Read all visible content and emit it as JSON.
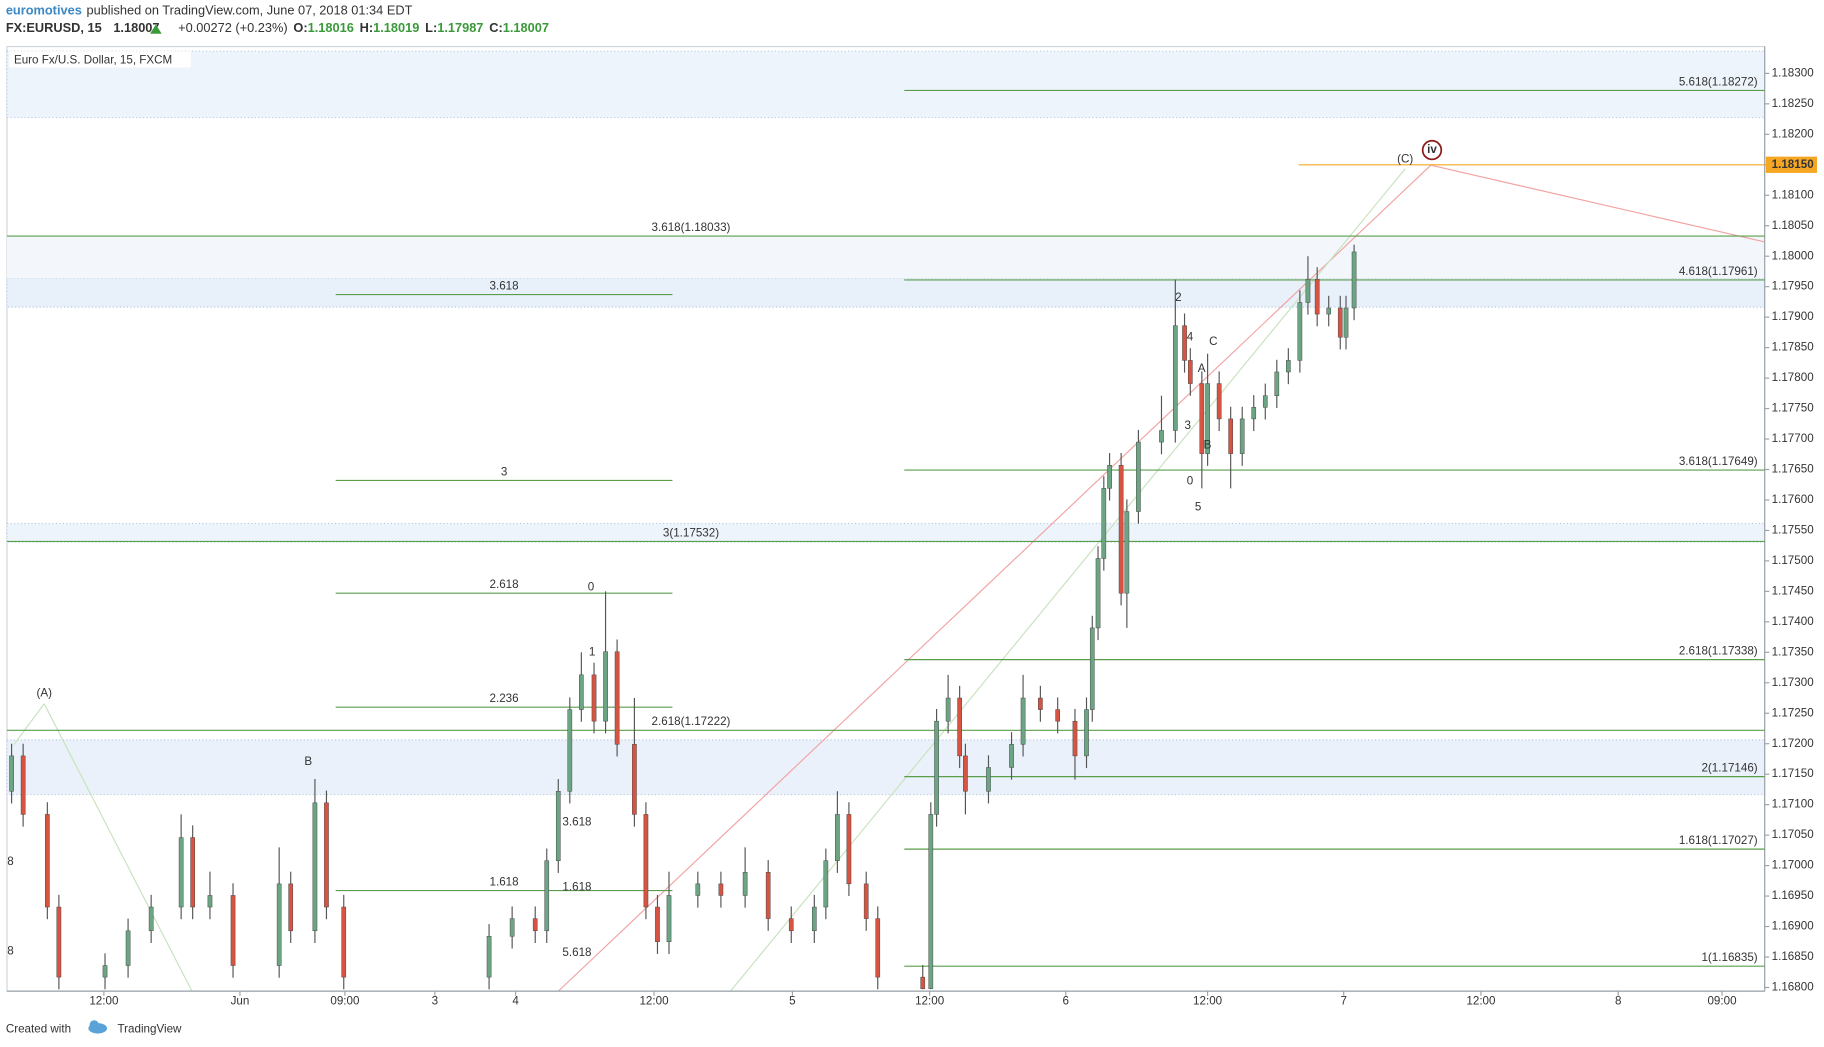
{
  "header": {
    "author": "euromotives",
    "published": "published on TradingView.com, June 07, 2018 01:34 EDT",
    "symbol": "FX:EURUSD, 15",
    "last": "1.18007",
    "change": "+0.00272 (+0.23%)",
    "ohlc": [
      {
        "label": "O:",
        "value": "1.18016"
      },
      {
        "label": "H:",
        "value": "1.18019"
      },
      {
        "label": "L:",
        "value": "1.17987"
      },
      {
        "label": "C:",
        "value": "1.18007"
      }
    ]
  },
  "footer": {
    "created": "Created with",
    "brand": "TradingView"
  },
  "chart_data": {
    "type": "candlestick",
    "title": "Euro Fx/U.S. Dollar, 15, FXCM",
    "x": [
      -43.7,
      -42.7,
      -40.6,
      -39.6,
      -35.6,
      -33.6,
      -31.6,
      -29.0,
      -28.0,
      -26.5,
      -24.5,
      -20.5,
      -19.5,
      -17.4,
      -16.4,
      -14.9,
      -2.3,
      -0.3,
      1.7,
      2.7,
      3.7,
      4.7,
      5.7,
      6.8,
      7.8,
      8.8,
      10.3,
      11.3,
      12.3,
      13.3,
      15.8,
      17.8,
      19.9,
      21.9,
      23.9,
      25.9,
      26.9,
      27.9,
      28.9,
      30.4,
      31.4,
      35.3,
      36.0,
      36.5,
      37.5,
      38.5,
      39.0,
      41.0,
      43.0,
      44.0,
      45.5,
      47.0,
      48.5,
      49.5,
      50.0,
      50.5,
      51.0,
      51.5,
      52.5,
      53.0,
      54.0,
      56.0,
      57.2,
      58.0,
      58.5,
      59.5,
      60.0,
      61.0,
      62.0,
      63.0,
      64.0,
      65.0,
      66.0,
      67.0,
      68.0,
      68.7,
      69.5,
      70.5,
      71.5,
      72.0,
      72.7
    ],
    "open": [
      1.17122,
      1.1718,
      1.17084,
      1.16932,
      1.16817,
      1.16836,
      1.16893,
      1.16932,
      1.17046,
      1.16932,
      1.16951,
      1.16836,
      1.1697,
      1.16893,
      1.17103,
      1.16932,
      1.16817,
      1.16884,
      1.16913,
      1.16893,
      1.17008,
      1.17122,
      1.17256,
      1.17313,
      1.17237,
      1.17351,
      1.17199,
      1.17084,
      1.16932,
      1.16875,
      1.16951,
      1.1697,
      1.16951,
      1.16989,
      1.16913,
      1.16893,
      1.16932,
      1.17008,
      1.17084,
      1.1697,
      1.16913,
      1.16817,
      1.16798,
      1.17084,
      1.17237,
      1.17275,
      1.1718,
      1.17122,
      1.17161,
      1.17199,
      1.17275,
      1.17256,
      1.17237,
      1.1718,
      1.17256,
      1.1739,
      1.17504,
      1.17619,
      1.17657,
      1.17447,
      1.17581,
      1.17695,
      1.17714,
      1.17886,
      1.17829,
      1.17791,
      1.17676,
      1.17791,
      1.17733,
      1.17676,
      1.17733,
      1.17752,
      1.17771,
      1.1781,
      1.17829,
      1.17924,
      1.17962,
      1.17905,
      1.17915,
      1.17867,
      1.17915
    ],
    "high": [
      1.172,
      1.172,
      1.17104,
      1.16952,
      1.16856,
      1.16913,
      1.16952,
      1.17084,
      1.17066,
      1.1699,
      1.16971,
      1.1703,
      1.1699,
      1.17142,
      1.17123,
      1.16952,
      1.16904,
      1.16933,
      1.16933,
      1.17028,
      1.17142,
      1.17276,
      1.1735,
      1.17333,
      1.1745,
      1.17371,
      1.17275,
      1.17104,
      1.16952,
      1.1699,
      1.1699,
      1.1699,
      1.1703,
      1.17009,
      1.16933,
      1.16952,
      1.17028,
      1.17122,
      1.17104,
      1.1699,
      1.16933,
      1.16837,
      1.17104,
      1.17257,
      1.17313,
      1.17295,
      1.172,
      1.17181,
      1.17219,
      1.17313,
      1.17295,
      1.17276,
      1.17257,
      1.17276,
      1.1741,
      1.17524,
      1.17639,
      1.17677,
      1.17677,
      1.17601,
      1.17715,
      1.17771,
      1.17962,
      1.17906,
      1.17849,
      1.17811,
      1.1784,
      1.17811,
      1.17753,
      1.17753,
      1.17772,
      1.17791,
      1.1783,
      1.17849,
      1.17944,
      1.18,
      1.17982,
      1.17935,
      1.17935,
      1.17935,
      1.18019
    ],
    "low": [
      1.17102,
      1.17064,
      1.16912,
      1.16797,
      1.16797,
      1.16816,
      1.16873,
      1.16912,
      1.16912,
      1.16912,
      1.16816,
      1.16816,
      1.16873,
      1.16873,
      1.16912,
      1.16797,
      1.16797,
      1.16864,
      1.16873,
      1.16873,
      1.16988,
      1.17102,
      1.17236,
      1.17217,
      1.17217,
      1.17179,
      1.17064,
      1.16912,
      1.16855,
      1.16855,
      1.16931,
      1.16931,
      1.16931,
      1.16893,
      1.16873,
      1.16873,
      1.16912,
      1.16988,
      1.1695,
      1.16893,
      1.16797,
      1.16797,
      1.16797,
      1.17064,
      1.17217,
      1.1716,
      1.17084,
      1.17102,
      1.17141,
      1.17179,
      1.17236,
      1.17217,
      1.17141,
      1.1716,
      1.17236,
      1.1737,
      1.17484,
      1.17599,
      1.17427,
      1.1739,
      1.17561,
      1.17675,
      1.17694,
      1.17809,
      1.17771,
      1.17619,
      1.17656,
      1.17713,
      1.17619,
      1.17656,
      1.17713,
      1.17732,
      1.17751,
      1.1779,
      1.17809,
      1.17904,
      1.17885,
      1.17885,
      1.17847,
      1.17847,
      1.17895
    ],
    "close": [
      1.1718,
      1.17084,
      1.16932,
      1.16817,
      1.16836,
      1.16893,
      1.16932,
      1.17046,
      1.16932,
      1.16951,
      1.16836,
      1.1697,
      1.16893,
      1.17103,
      1.16932,
      1.16817,
      1.16884,
      1.16913,
      1.16893,
      1.17008,
      1.17122,
      1.17256,
      1.17313,
      1.17237,
      1.17351,
      1.17199,
      1.17084,
      1.16932,
      1.16875,
      1.16951,
      1.1697,
      1.16951,
      1.16989,
      1.16913,
      1.16893,
      1.16932,
      1.17008,
      1.17084,
      1.1697,
      1.16913,
      1.16817,
      1.16798,
      1.17084,
      1.17237,
      1.17275,
      1.1718,
      1.17122,
      1.17161,
      1.17199,
      1.17275,
      1.17256,
      1.17237,
      1.1718,
      1.17256,
      1.1739,
      1.17504,
      1.17619,
      1.17657,
      1.17447,
      1.17581,
      1.17695,
      1.17714,
      1.17886,
      1.17829,
      1.17791,
      1.17676,
      1.17791,
      1.17733,
      1.17676,
      1.17733,
      1.17752,
      1.17771,
      1.1781,
      1.17829,
      1.17924,
      1.17962,
      1.17905,
      1.17915,
      1.17867,
      1.17915,
      1.18007
    ],
    "up_color": "#6ba583",
    "down_color": "#d75442",
    "xlim": [
      -44.1,
      108.3
    ],
    "xticks": [
      {
        "value": -35.7,
        "label": "12:00"
      },
      {
        "value": -23.9,
        "label": "Jun"
      },
      {
        "value": -14.8,
        "label": "09:00"
      },
      {
        "value": -7.0,
        "label": "3"
      },
      {
        "value": 0,
        "label": "4"
      },
      {
        "value": 12.0,
        "label": "12:00"
      },
      {
        "value": 24.0,
        "label": "5"
      },
      {
        "value": 35.9,
        "label": "12:00"
      },
      {
        "value": 47.7,
        "label": "6"
      },
      {
        "value": 60.0,
        "label": "12:00"
      },
      {
        "value": 71.8,
        "label": "7"
      },
      {
        "value": 83.7,
        "label": "12:00"
      },
      {
        "value": 95.6,
        "label": "8"
      },
      {
        "value": 104.6,
        "label": "09:00"
      }
    ],
    "ylim": [
      1.16794,
      1.18344
    ],
    "yticks": [
      {
        "value": 1.168,
        "label": "1.16800"
      },
      {
        "value": 1.1685,
        "label": "1.16850"
      },
      {
        "value": 1.169,
        "label": "1.16900"
      },
      {
        "value": 1.1695,
        "label": "1.16950"
      },
      {
        "value": 1.17,
        "label": "1.17000"
      },
      {
        "value": 1.1705,
        "label": "1.17050"
      },
      {
        "value": 1.171,
        "label": "1.17100"
      },
      {
        "value": 1.1715,
        "label": "1.17150"
      },
      {
        "value": 1.172,
        "label": "1.17200"
      },
      {
        "value": 1.1725,
        "label": "1.17250"
      },
      {
        "value": 1.173,
        "label": "1.17300"
      },
      {
        "value": 1.1735,
        "label": "1.17350"
      },
      {
        "value": 1.174,
        "label": "1.17400"
      },
      {
        "value": 1.1745,
        "label": "1.17450"
      },
      {
        "value": 1.175,
        "label": "1.17500"
      },
      {
        "value": 1.1755,
        "label": "1.17550"
      },
      {
        "value": 1.176,
        "label": "1.17600"
      },
      {
        "value": 1.1765,
        "label": "1.17650"
      },
      {
        "value": 1.177,
        "label": "1.17700"
      },
      {
        "value": 1.1775,
        "label": "1.17750"
      },
      {
        "value": 1.178,
        "label": "1.17800"
      },
      {
        "value": 1.1785,
        "label": "1.17850"
      },
      {
        "value": 1.179,
        "label": "1.17900"
      },
      {
        "value": 1.1795,
        "label": "1.17950"
      },
      {
        "value": 1.18,
        "label": "1.18000"
      },
      {
        "value": 1.1805,
        "label": "1.18050"
      },
      {
        "value": 1.181,
        "label": "1.18100"
      },
      {
        "value": 1.1815,
        "label": "1.18150"
      },
      {
        "value": 1.182,
        "label": "1.18200"
      },
      {
        "value": 1.1825,
        "label": "1.18250"
      },
      {
        "value": 1.183,
        "label": "1.18300"
      }
    ],
    "levels": [
      {
        "label": "5.618(1.18272)",
        "price": 1.18272,
        "x": [
          33.7,
          108.3
        ]
      },
      {
        "label": "3.618(1.18033)",
        "price": 1.18033,
        "x": [
          -44.1,
          108.3
        ]
      },
      {
        "label": "4.618(1.17961)",
        "price": 1.17961,
        "x": [
          33.7,
          108.3
        ]
      },
      {
        "label": "3.618",
        "price": 1.17937,
        "x": [
          -15.6,
          13.6
        ]
      },
      {
        "label": "3",
        "price": 1.17632,
        "x": [
          -15.6,
          13.6
        ]
      },
      {
        "label": "3.618(1.17649)",
        "price": 1.17649,
        "x": [
          33.7,
          108.3
        ]
      },
      {
        "label": "3(1.17532)",
        "price": 1.17532,
        "x": [
          -44.1,
          108.3
        ]
      },
      {
        "label": "2.618",
        "price": 1.17447,
        "x": [
          -15.6,
          13.6
        ]
      },
      {
        "label": "2.618(1.17338)",
        "price": 1.17338,
        "x": [
          33.7,
          108.3
        ]
      },
      {
        "label": "2.236",
        "price": 1.1726,
        "x": [
          -15.6,
          13.6
        ]
      },
      {
        "label": "2.618(1.17222)",
        "price": 1.17222,
        "x": [
          -44.1,
          108.3
        ]
      },
      {
        "label": "2(1.17146)",
        "price": 1.17146,
        "x": [
          33.7,
          108.3
        ]
      },
      {
        "label": "1.618(1.17027)",
        "price": 1.17027,
        "x": [
          33.7,
          108.3
        ]
      },
      {
        "label": "1.618",
        "price": 1.16959,
        "x": [
          -15.6,
          13.6
        ]
      },
      {
        "label": "1(1.16835)",
        "price": 1.16835,
        "x": [
          33.7,
          108.3
        ]
      }
    ],
    "level_color": "#5a9e4b",
    "price_line": {
      "value": 1.1815,
      "label": "1.18150",
      "x": [
        67.9,
        108.3
      ],
      "color": "#f5a623"
    },
    "annotations": [
      "(A)",
      "(C)",
      "2",
      "4",
      "C",
      "A",
      "3",
      "B",
      "0",
      "5",
      "0",
      "1",
      "B",
      "3.618",
      "1.618",
      "5.618",
      "8",
      "8",
      "iv"
    ]
  }
}
